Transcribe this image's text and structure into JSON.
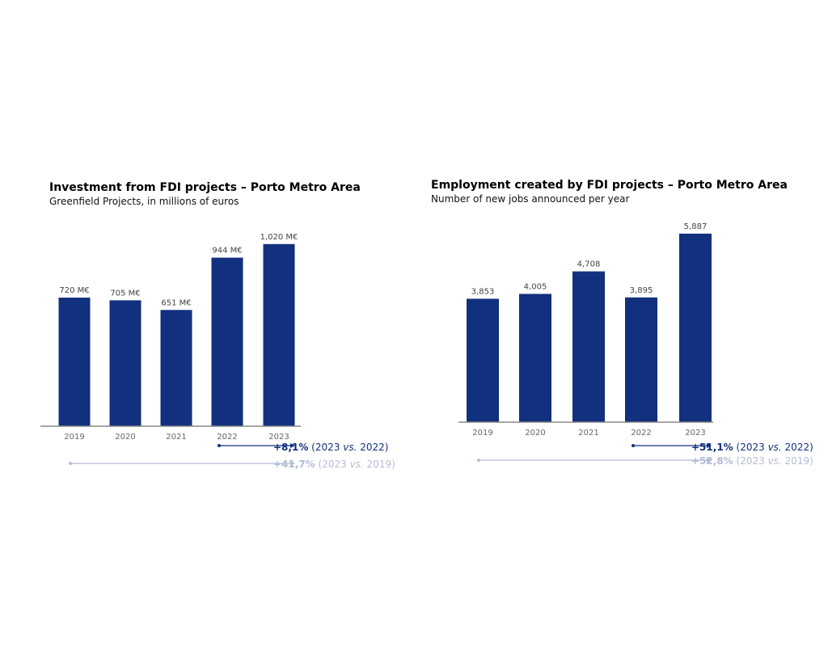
{
  "colors": {
    "bar": "#11307e",
    "axis": "#888888",
    "label": "#444444",
    "arrow_dark": "#11307e",
    "arrow_light": "#b3bcd6"
  },
  "chart_data": [
    {
      "type": "bar",
      "title": "Investment from FDI projects – Porto Metro Area",
      "subtitle": "Greenfield Projects, in millions of euros",
      "categories": [
        "2019",
        "2020",
        "2021",
        "2022",
        "2023"
      ],
      "values": [
        720,
        705,
        651,
        944,
        1020
      ],
      "data_labels": [
        "720 M€",
        "705 M€",
        "651 M€",
        "944 M€",
        "1,020 M€"
      ],
      "grid": false,
      "annotations": [
        {
          "pct": "+8,1%",
          "open": "(2023 ",
          "vs": "vs.",
          "close": " 2022)",
          "from": "2022",
          "to": "2023"
        },
        {
          "pct": "+41,7%",
          "open": "(2023 ",
          "vs": "vs.",
          "close": " 2019)",
          "from": "2019",
          "to": "2023"
        }
      ]
    },
    {
      "type": "bar",
      "title": "Employment created by FDI projects – Porto Metro Area",
      "subtitle": "Number of new jobs announced per year",
      "categories": [
        "2019",
        "2020",
        "2021",
        "2022",
        "2023"
      ],
      "values": [
        3853,
        4005,
        4708,
        3895,
        5887
      ],
      "data_labels": [
        "3,853",
        "4,005",
        "4,708",
        "3,895",
        "5,887"
      ],
      "grid": false,
      "annotations": [
        {
          "pct": "+51,1%",
          "open": "(2023 ",
          "vs": "vs.",
          "close": " 2022)",
          "from": "2022",
          "to": "2023"
        },
        {
          "pct": "+52,8%",
          "open": "(2023 ",
          "vs": "vs.",
          "close": " 2019)",
          "from": "2019",
          "to": "2023"
        }
      ]
    }
  ]
}
